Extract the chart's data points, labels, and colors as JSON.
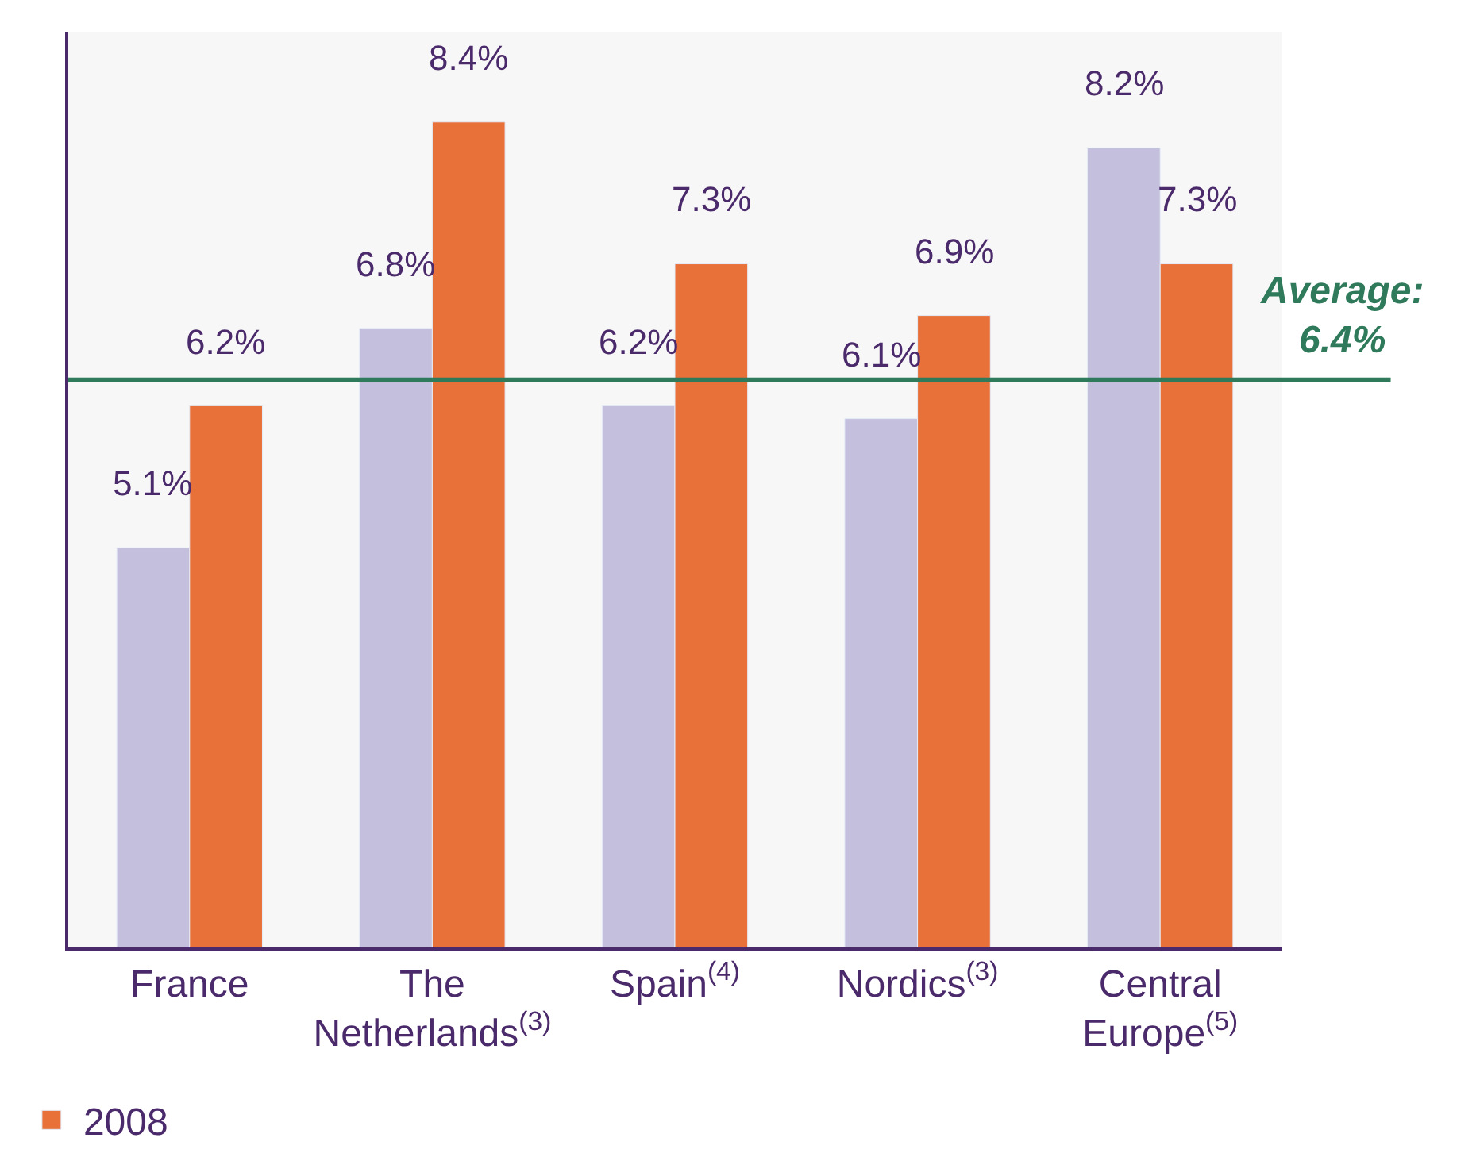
{
  "chart_data": {
    "type": "bar",
    "categories": [
      "France",
      "The Netherlands$^{(3)}$",
      "Spain$^{(4)}$",
      "Nordics$^{(3)}$",
      "Central Europe$^{(5)}$"
    ],
    "series": [
      {
        "color": "#c3bfdd",
        "values": [
          5.1,
          6.8,
          6.2,
          6.1,
          8.2
        ],
        "value_labels": [
          "5.1%",
          "6.8%",
          "6.2%",
          "6.1%",
          "8.2%"
        ]
      },
      {
        "name": "2008",
        "color": "#e8713a",
        "values": [
          6.2,
          8.4,
          7.3,
          6.9,
          7.3
        ],
        "value_labels": [
          "6.2%",
          "8.4%",
          "7.3%",
          "6.9%",
          "7.3%"
        ]
      }
    ],
    "ylim": [
      2,
      9.1
    ],
    "tick_labels": "x",
    "grid": false,
    "legend": "bottom left",
    "ref_lines": [
      {
        "axis": "y",
        "value": 6.4,
        "label": "Average:\n6.4%",
        "color": "#2e7a5a"
      }
    ]
  }
}
